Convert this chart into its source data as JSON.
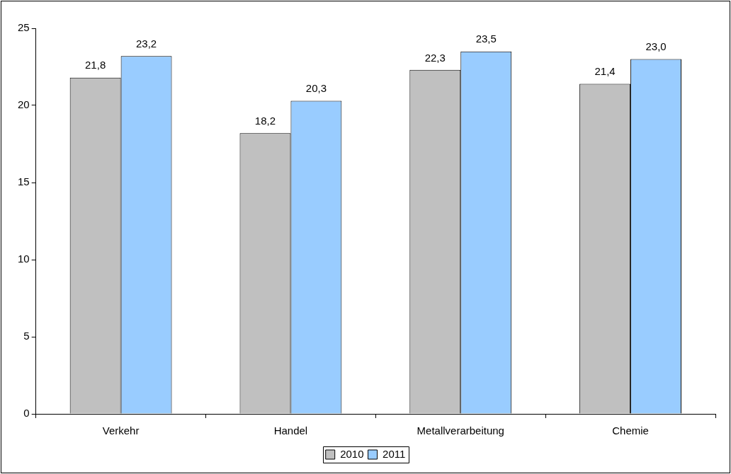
{
  "chart_data": {
    "type": "bar",
    "categories": [
      "Verkehr",
      "Handel",
      "Metallverarbeitung",
      "Chemie"
    ],
    "series": [
      {
        "name": "2010",
        "color": "#c0c0c0",
        "values": [
          21.8,
          18.2,
          22.3,
          21.4
        ],
        "value_labels": [
          "21,8",
          "18,2",
          "22,3",
          "21,4"
        ]
      },
      {
        "name": "2011",
        "color": "#99ccff",
        "values": [
          23.2,
          20.3,
          23.5,
          23.0
        ],
        "value_labels": [
          "23,2",
          "20,3",
          "23,5",
          "23,0"
        ]
      }
    ],
    "ylim": [
      0,
      25
    ],
    "yticks": [
      0,
      5,
      10,
      15,
      20,
      25
    ],
    "grid": false,
    "legend": "bottom"
  }
}
